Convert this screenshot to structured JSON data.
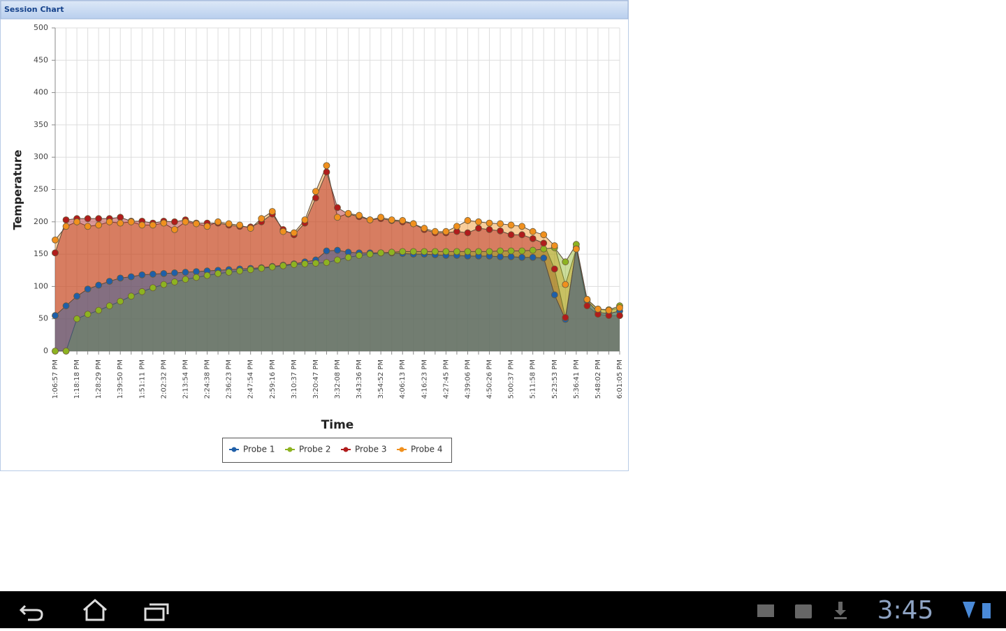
{
  "window": {
    "title": "Session Chart"
  },
  "status_bar": {
    "time": "3:45"
  },
  "chart_data": {
    "type": "area",
    "x_label": "Time",
    "y_label": "Temperature",
    "categories": [
      "1:06:57 PM",
      null,
      "1:18:18 PM",
      null,
      "1:28:29 PM",
      null,
      "1:39:50 PM",
      null,
      "1:51:11 PM",
      null,
      "2:02:32 PM",
      null,
      "2:13:54 PM",
      null,
      "2:24:38 PM",
      null,
      "2:36:23 PM",
      null,
      "2:47:54 PM",
      null,
      "2:59:16 PM",
      null,
      "3:10:37 PM",
      null,
      "3:20:47 PM",
      null,
      "3:32:08 PM",
      null,
      "3:43:36 PM",
      null,
      "3:54:52 PM",
      null,
      "4:06:13 PM",
      null,
      "4:16:23 PM",
      null,
      "4:27:45 PM",
      null,
      "4:39:06 PM",
      null,
      "4:50:26 PM",
      null,
      "5:00:37 PM",
      null,
      "5:11:58 PM",
      null,
      "5:23:53 PM",
      null,
      "5:36:41 PM",
      null,
      "5:48:02 PM",
      null,
      "6:01:05 PM"
    ],
    "series": [
      {
        "name": "Probe 1",
        "color": "#1f5fa8",
        "values": [
          55,
          70,
          85,
          96,
          102,
          108,
          113,
          115,
          118,
          119,
          120,
          121,
          122,
          123,
          124,
          125,
          126,
          127,
          128,
          129,
          131,
          133,
          135,
          138,
          141,
          155,
          156,
          153,
          152,
          152,
          152,
          152,
          151,
          150,
          150,
          149,
          148,
          148,
          147,
          147,
          147,
          146,
          146,
          145,
          145,
          144,
          87,
          49,
          160,
          78,
          60,
          58,
          62
        ]
      },
      {
        "name": "Probe 2",
        "color": "#8db321",
        "values": [
          0,
          0,
          50,
          57,
          63,
          70,
          77,
          85,
          92,
          98,
          103,
          107,
          111,
          114,
          117,
          120,
          122,
          124,
          126,
          128,
          130,
          132,
          134,
          135,
          136,
          137,
          141,
          145,
          148,
          150,
          152,
          153,
          154,
          154,
          154,
          154,
          154,
          154,
          154,
          154,
          154,
          155,
          155,
          155,
          156,
          158,
          160,
          138,
          165,
          80,
          65,
          64,
          70
        ]
      },
      {
        "name": "Probe 3",
        "color": "#b01c1c",
        "values": [
          152,
          203,
          205,
          205,
          205,
          205,
          207,
          201,
          201,
          198,
          201,
          200,
          203,
          198,
          198,
          198,
          195,
          193,
          192,
          200,
          212,
          188,
          180,
          198,
          237,
          277,
          222,
          212,
          208,
          203,
          205,
          202,
          200,
          197,
          188,
          183,
          183,
          185,
          183,
          190,
          188,
          186,
          180,
          180,
          174,
          167,
          127,
          52,
          158,
          70,
          57,
          55,
          55
        ]
      },
      {
        "name": "Probe 4",
        "color": "#f0901e",
        "values": [
          172,
          193,
          200,
          193,
          195,
          200,
          198,
          200,
          195,
          195,
          198,
          188,
          200,
          197,
          193,
          200,
          197,
          195,
          190,
          205,
          216,
          185,
          183,
          203,
          247,
          287,
          207,
          213,
          210,
          203,
          207,
          203,
          202,
          197,
          190,
          185,
          185,
          193,
          202,
          200,
          198,
          197,
          195,
          193,
          185,
          180,
          163,
          103,
          158,
          80,
          65,
          63,
          67
        ]
      }
    ],
    "ylim": [
      0,
      500
    ],
    "yticks": [
      0,
      50,
      100,
      150,
      200,
      250,
      300,
      350,
      400,
      450,
      500
    ],
    "grid": true,
    "legend": "bottom"
  }
}
